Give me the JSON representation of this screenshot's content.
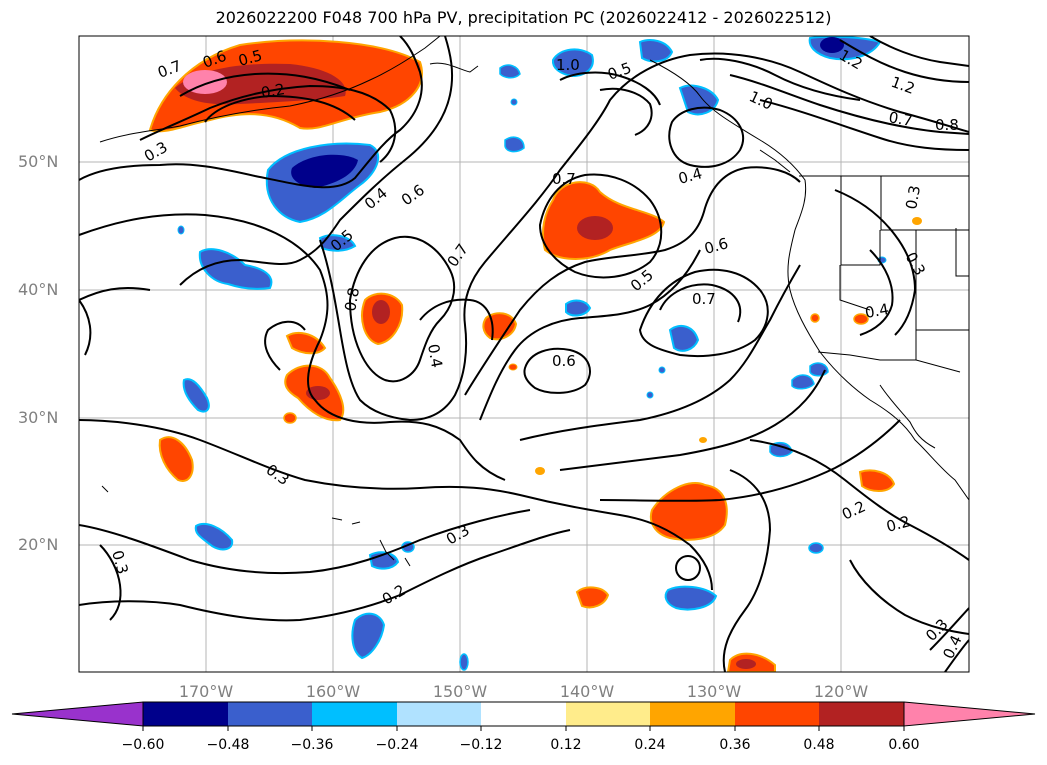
{
  "title": "2026022200 F048 700 hPa PV, precipitation PC (2026022412 - 2026022512)",
  "map": {
    "lat_ticks": [
      "50°N",
      "40°N",
      "30°N",
      "20°N"
    ],
    "lon_ticks": [
      "170°W",
      "160°W",
      "150°W",
      "140°W",
      "130°W",
      "120°W"
    ],
    "contour_labels": [
      "0.7",
      "0.6",
      "0.5",
      "0.2",
      "0.3",
      "0.5",
      "0.4",
      "0.6",
      "0.8",
      "0.7",
      "0.4",
      "0.7",
      "0.5",
      "0.6",
      "0.7",
      "0.4",
      "0.6",
      "0.3",
      "0.3",
      "0.2",
      "0.3",
      "1.0",
      "0.5",
      "1.0",
      "1.2",
      "1.2",
      "0.7",
      "0.8",
      "0.3",
      "0.3",
      "0.4",
      "0.2",
      "0.2",
      "0.3",
      "0.4"
    ]
  },
  "colorbar": {
    "tick_labels": [
      "−0.60",
      "−0.48",
      "−0.36",
      "−0.24",
      "−0.12",
      "0.12",
      "0.24",
      "0.36",
      "0.48",
      "0.60"
    ],
    "colors": [
      "#9932cc",
      "#00008b",
      "#3a5fcd",
      "#00bfff",
      "#b0e2ff",
      "#ffffff",
      "#ffec8b",
      "#ffa500",
      "#ff4500",
      "#b22222",
      "#ff82ab"
    ]
  }
}
